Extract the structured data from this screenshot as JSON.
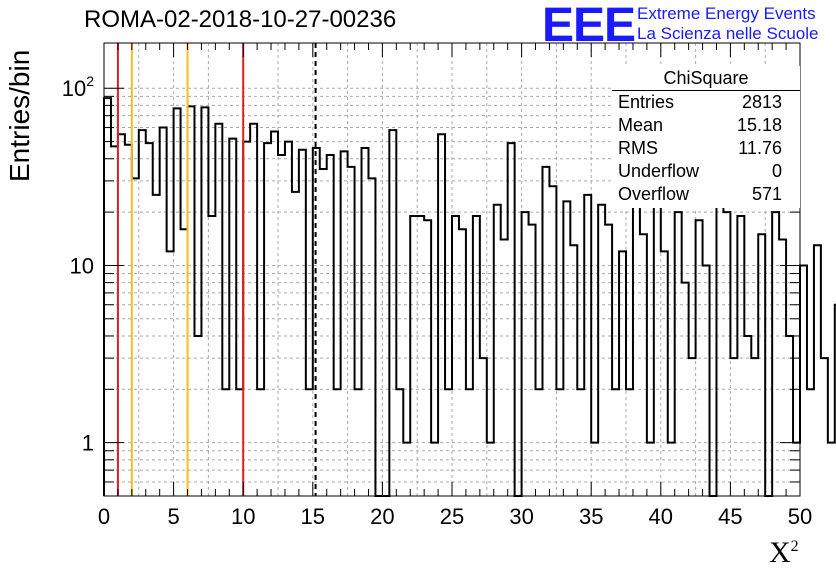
{
  "header": {
    "title": "ROMA-02-2018-10-27-00236",
    "logo_text": "EEE",
    "org_line1": "Extreme Energy Events",
    "org_line2": "La Scienza nelle Scuole"
  },
  "stats_box": {
    "name": "ChiSquare",
    "rows": [
      {
        "label": "Entries",
        "value": "2813"
      },
      {
        "label": "Mean",
        "value": "15.18"
      },
      {
        "label": "RMS",
        "value": "11.76"
      },
      {
        "label": "Underflow",
        "value": "0"
      },
      {
        "label": "Overflow",
        "value": "571"
      }
    ]
  },
  "colors": {
    "cut_red": "#e02020",
    "cut_yellow": "#f0c020",
    "histogram": "#000000",
    "logo": "#1a1aff"
  },
  "chart_data": {
    "type": "histogram",
    "xlabel": "X²",
    "ylabel": "Entries/bin",
    "xlim": [
      0,
      50
    ],
    "ylim": [
      0.5,
      180
    ],
    "yscale": "log",
    "grid": true,
    "legend": "top-right",
    "bin_width": 0.5,
    "x_ticks": [
      "0",
      "5",
      "10",
      "15",
      "20",
      "25",
      "30",
      "35",
      "40",
      "45",
      "50"
    ],
    "y_ticks": [
      {
        "value": 1,
        "label": "1"
      },
      {
        "value": 10,
        "label": "10"
      },
      {
        "value": 100,
        "label": "10²"
      }
    ],
    "values": [
      88,
      47,
      55,
      48,
      31,
      58,
      49,
      25,
      60,
      12,
      77,
      16,
      79,
      4,
      78,
      19,
      63,
      2,
      52,
      2,
      50,
      63,
      2,
      49,
      57,
      42,
      50,
      26,
      45,
      2,
      46,
      35,
      42,
      2,
      44,
      36,
      2,
      46,
      31,
      0.5,
      0.5,
      58,
      2,
      1,
      19,
      19,
      18,
      1,
      55,
      2,
      19,
      16,
      2,
      19,
      3,
      1,
      22,
      14,
      49,
      0.5,
      20,
      17,
      2,
      36,
      28,
      2,
      23,
      13,
      2,
      25,
      1,
      22,
      17,
      2,
      12,
      2,
      32,
      15,
      1,
      31,
      12,
      1,
      20,
      8,
      3,
      18,
      10,
      0.5,
      32,
      20,
      3,
      19,
      4,
      3,
      15,
      0.5,
      20,
      14,
      4,
      1,
      10,
      2,
      13,
      3,
      1,
      6,
      0.5,
      1,
      7,
      0.5,
      11,
      8,
      5,
      12,
      16,
      6,
      1,
      6,
      1,
      8,
      3,
      1,
      12,
      9,
      8,
      0.5,
      9,
      4,
      2,
      9,
      0.5,
      1,
      2,
      0.5,
      5,
      0.5,
      1,
      4,
      3,
      2,
      2,
      3
    ],
    "vertical_lines": [
      {
        "x": 1,
        "color": "red",
        "style": "solid"
      },
      {
        "x": 2,
        "color": "yellow",
        "style": "solid"
      },
      {
        "x": 6,
        "color": "yellow",
        "style": "solid"
      },
      {
        "x": 10,
        "color": "red",
        "style": "solid"
      },
      {
        "x": 15.2,
        "color": "black",
        "style": "dashed"
      }
    ]
  }
}
